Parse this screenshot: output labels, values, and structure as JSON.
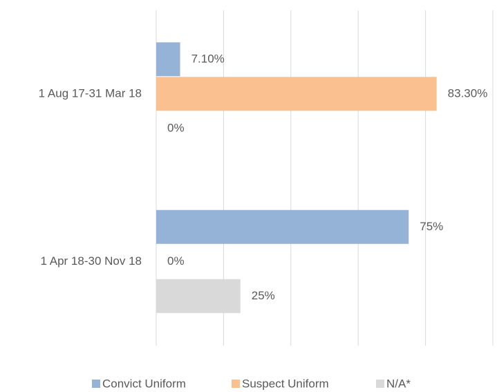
{
  "chart_data": {
    "type": "bar",
    "orientation": "horizontal",
    "categories": [
      "1 Aug 17-31 Mar 18",
      "1 Apr 18-30 Nov 18"
    ],
    "series": [
      {
        "name": "Convict Uniform",
        "color": "#95b3d7",
        "values": [
          7.1,
          75
        ],
        "value_labels": [
          "7.10%",
          "75%"
        ]
      },
      {
        "name": "Suspect Uniform",
        "color": "#fac090",
        "values": [
          83.3,
          0
        ],
        "value_labels": [
          "83.30%",
          "0%"
        ]
      },
      {
        "name": "N/A*",
        "color": "#d9d9d9",
        "values": [
          0,
          25
        ],
        "value_labels": [
          "0%",
          "25%"
        ]
      }
    ],
    "xlim": [
      0,
      100
    ],
    "xticks": [
      0,
      20,
      40,
      60,
      80,
      100
    ],
    "grid": true,
    "legend": "bottom"
  }
}
